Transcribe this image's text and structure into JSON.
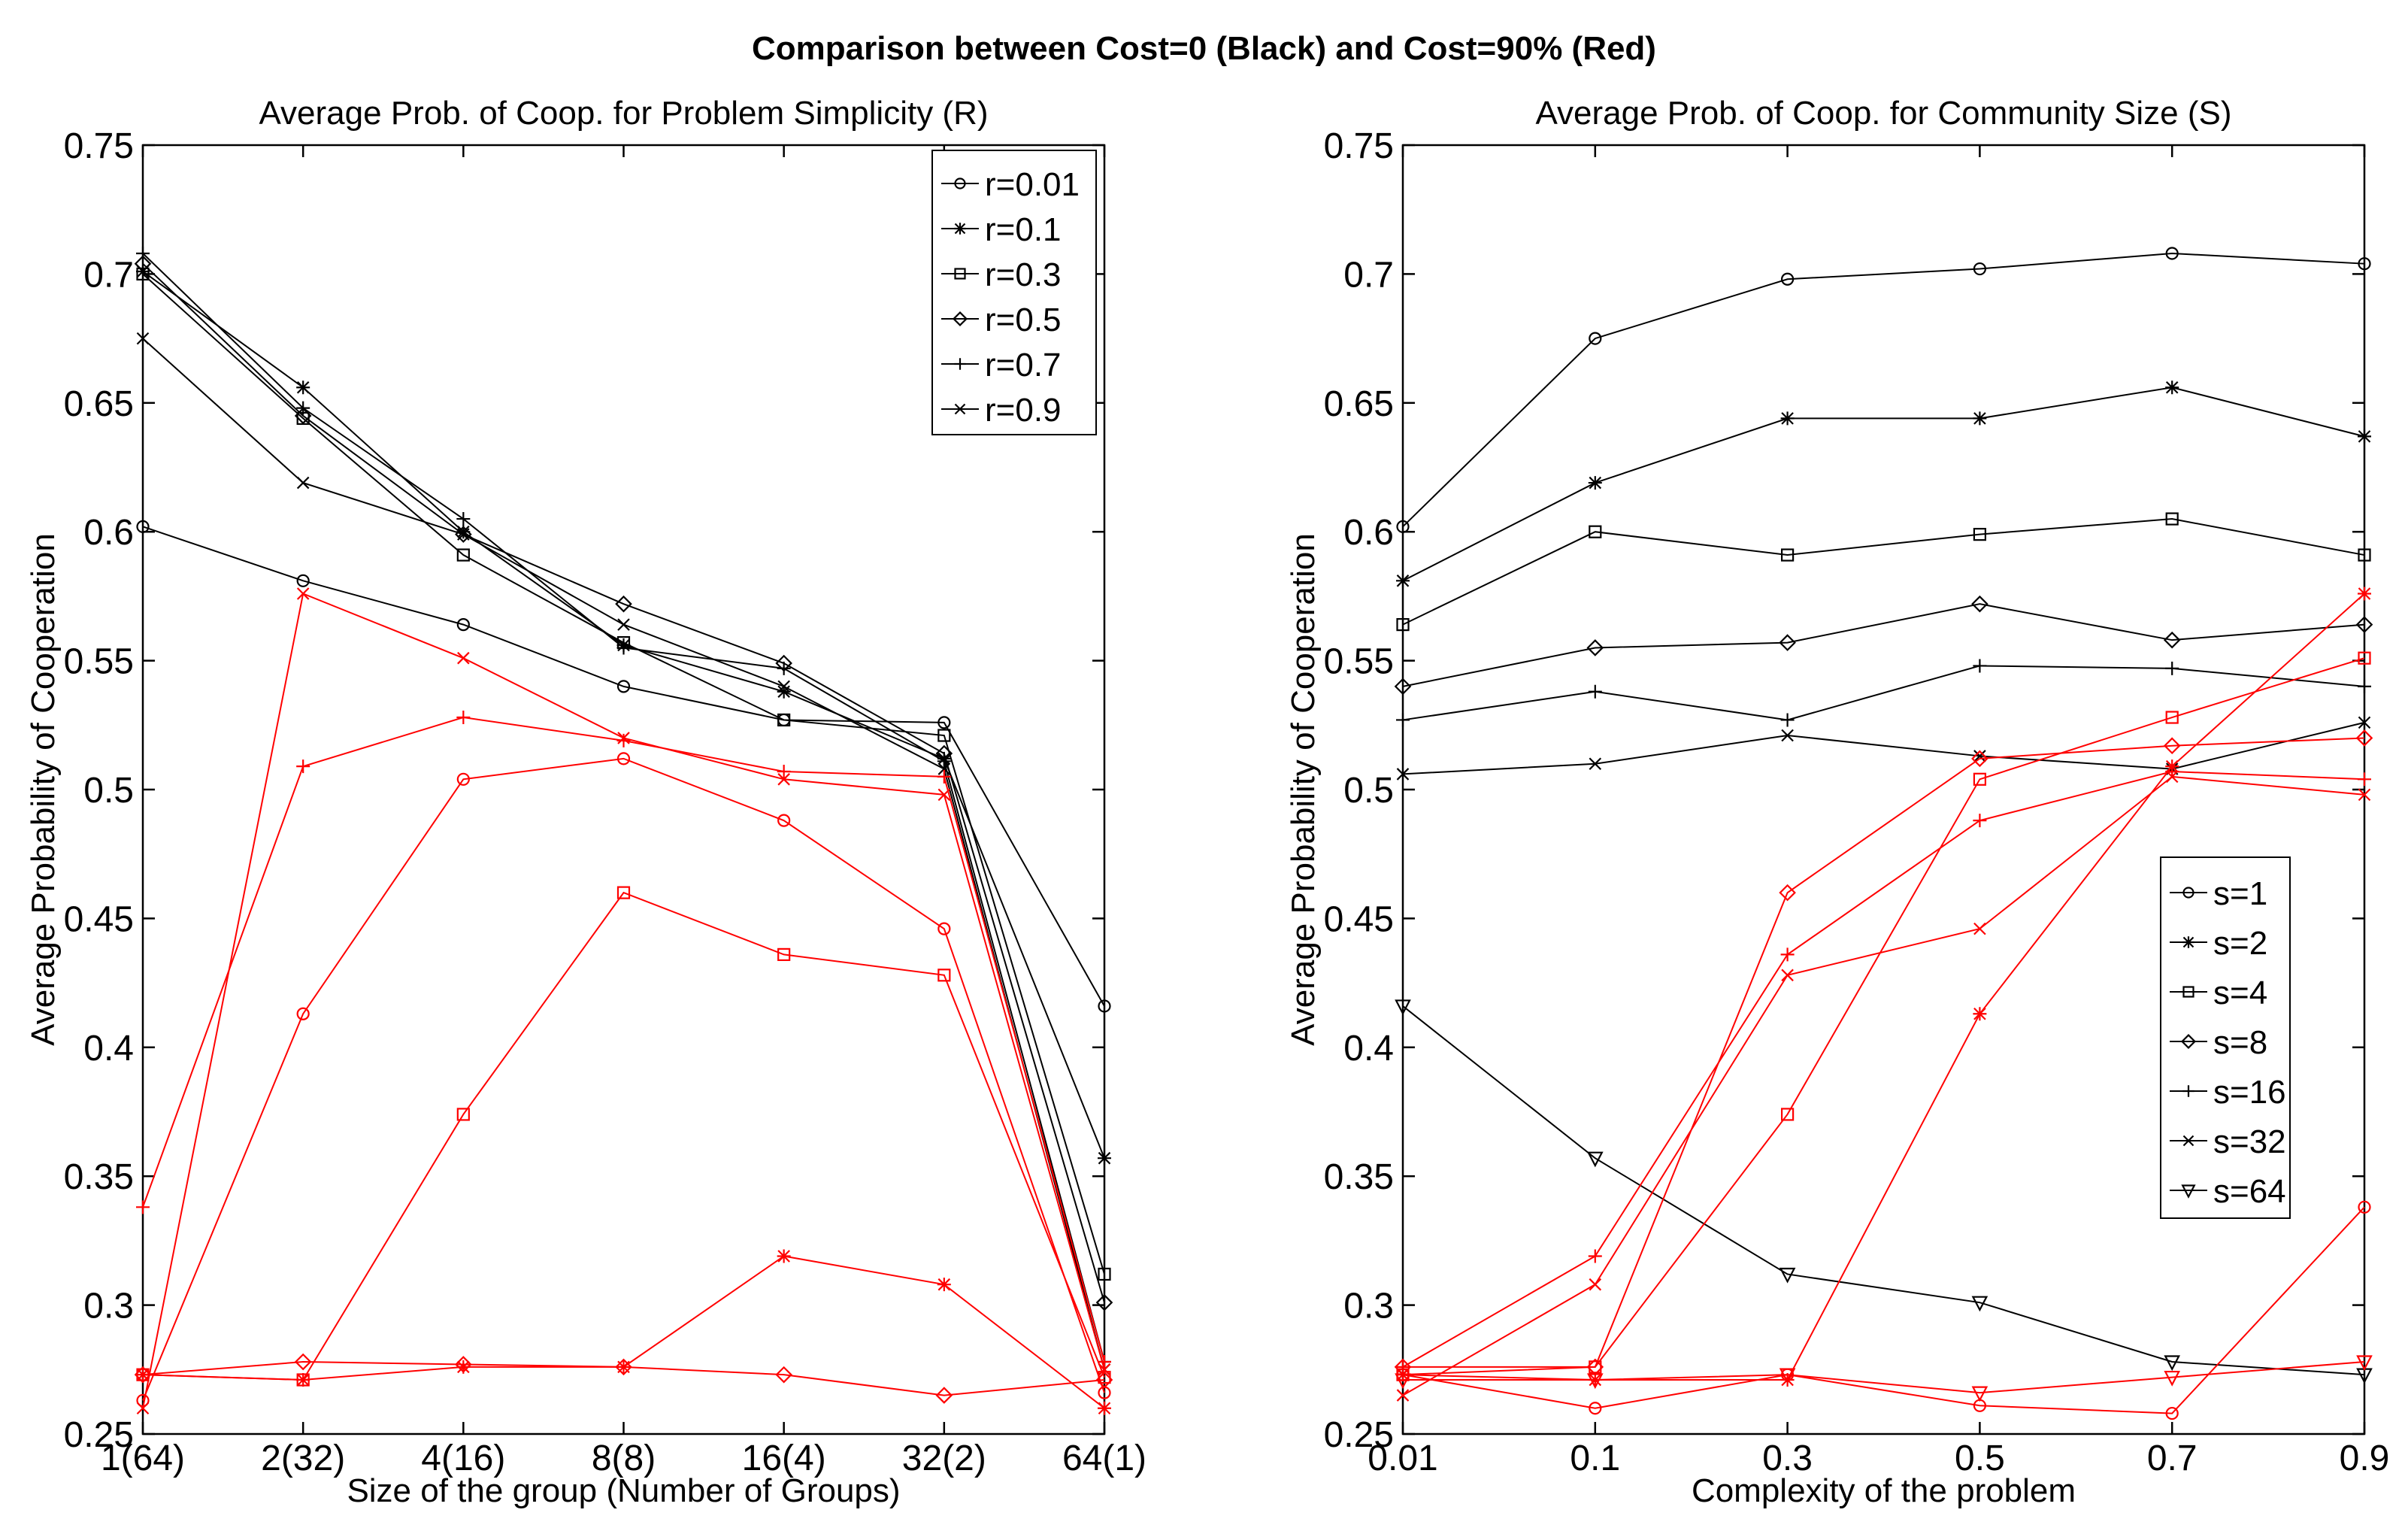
{
  "main_title": "Comparison between Cost=0 (Black) and Cost=90% (Red)",
  "colors": {
    "cost0": "#000000",
    "cost90": "#ff0000",
    "axis": "#000000",
    "background": "#ffffff"
  },
  "chart_data": [
    {
      "type": "line",
      "title": "Average  Prob. of Coop. for Problem Simplicity (R)",
      "xlabel": "Size of the group (Number of Groups)",
      "ylabel": "Average  Probability of Cooperation",
      "categories": [
        "1(64)",
        "2(32)",
        "4(16)",
        "8(8)",
        "16(4)",
        "32(2)",
        "64(1)"
      ],
      "ylim": [
        0.25,
        0.75
      ],
      "yticks": [
        "0.25",
        "0.3",
        "0.35",
        "0.4",
        "0.45",
        "0.5",
        "0.55",
        "0.6",
        "0.65",
        "0.7",
        "0.75"
      ],
      "legend": {
        "position": "top-right",
        "entries": [
          "r=0.01",
          "r=0.1",
          "r=0.3",
          "r=0.5",
          "r=0.7",
          "r=0.9"
        ]
      },
      "series": [
        {
          "name": "r=0.01",
          "marker": "circle",
          "cost": "0",
          "values": [
            0.602,
            0.581,
            0.564,
            0.54,
            0.527,
            0.526,
            0.416
          ]
        },
        {
          "name": "r=0.1",
          "marker": "star",
          "cost": "0",
          "values": [
            0.701,
            0.656,
            0.6,
            0.556,
            0.538,
            0.512,
            0.357
          ]
        },
        {
          "name": "r=0.3",
          "marker": "square",
          "cost": "0",
          "values": [
            0.7,
            0.644,
            0.591,
            0.557,
            0.527,
            0.521,
            0.312
          ]
        },
        {
          "name": "r=0.5",
          "marker": "diamond",
          "cost": "0",
          "values": [
            0.704,
            0.645,
            0.599,
            0.572,
            0.549,
            0.514,
            0.301
          ]
        },
        {
          "name": "r=0.7",
          "marker": "plus",
          "cost": "0",
          "values": [
            0.708,
            0.648,
            0.605,
            0.555,
            0.547,
            0.511,
            0.278
          ]
        },
        {
          "name": "r=0.9",
          "marker": "x",
          "cost": "0",
          "values": [
            0.675,
            0.619,
            0.599,
            0.564,
            0.54,
            0.508,
            0.275
          ]
        },
        {
          "name": "r=0.01",
          "marker": "circle",
          "cost": "90%",
          "values": [
            0.263,
            0.413,
            0.504,
            0.512,
            0.488,
            0.446,
            0.266
          ]
        },
        {
          "name": "r=0.1",
          "marker": "star",
          "cost": "90%",
          "values": [
            0.273,
            0.271,
            0.276,
            0.276,
            0.319,
            0.308,
            0.26
          ]
        },
        {
          "name": "r=0.3",
          "marker": "square",
          "cost": "90%",
          "values": [
            0.273,
            0.271,
            0.374,
            0.46,
            0.436,
            0.428,
            0.272
          ]
        },
        {
          "name": "r=0.5",
          "marker": "diamond",
          "cost": "90%",
          "values": [
            0.273,
            0.278,
            0.277,
            0.276,
            0.273,
            0.265,
            0.271
          ]
        },
        {
          "name": "r=0.7",
          "marker": "plus",
          "cost": "90%",
          "values": [
            0.338,
            0.509,
            0.528,
            0.519,
            0.507,
            0.505,
            0.278
          ]
        },
        {
          "name": "r=0.9",
          "marker": "x",
          "cost": "90%",
          "values": [
            0.26,
            0.576,
            0.551,
            0.52,
            0.504,
            0.498,
            0.275
          ]
        }
      ]
    },
    {
      "type": "line",
      "title": "Average  Prob. of Coop. for Community Size (S)",
      "xlabel": "Complexity of the problem",
      "ylabel": "Average Probability of Cooperation",
      "categories": [
        "0.01",
        "0.1",
        "0.3",
        "0.5",
        "0.7",
        "0.9"
      ],
      "ylim": [
        0.25,
        0.75
      ],
      "yticks": [
        "0.25",
        "0.3",
        "0.35",
        "0.4",
        "0.45",
        "0.5",
        "0.55",
        "0.6",
        "0.65",
        "0.7",
        "0.75"
      ],
      "legend": {
        "position": "right",
        "entries": [
          "s=1",
          "s=2",
          "s=4",
          "s=8",
          "s=16",
          "s=32",
          "s=64"
        ]
      },
      "series": [
        {
          "name": "s=1",
          "marker": "circle",
          "cost": "0",
          "values": [
            0.602,
            0.675,
            0.698,
            0.702,
            0.708,
            0.704
          ]
        },
        {
          "name": "s=2",
          "marker": "star",
          "cost": "0",
          "values": [
            0.581,
            0.619,
            0.644,
            0.644,
            0.656,
            0.637
          ]
        },
        {
          "name": "s=4",
          "marker": "square",
          "cost": "0",
          "values": [
            0.564,
            0.6,
            0.591,
            0.599,
            0.605,
            0.591
          ]
        },
        {
          "name": "s=8",
          "marker": "diamond",
          "cost": "0",
          "values": [
            0.54,
            0.555,
            0.557,
            0.572,
            0.558,
            0.564
          ]
        },
        {
          "name": "s=16",
          "marker": "plus",
          "cost": "0",
          "values": [
            0.527,
            0.538,
            0.527,
            0.548,
            0.547,
            0.54
          ]
        },
        {
          "name": "s=32",
          "marker": "x",
          "cost": "0",
          "values": [
            0.506,
            0.51,
            0.521,
            0.513,
            0.508,
            0.526
          ]
        },
        {
          "name": "s=64",
          "marker": "triangle-down",
          "cost": "0",
          "values": [
            0.416,
            0.357,
            0.312,
            0.301,
            0.278,
            0.273
          ]
        },
        {
          "name": "s=1",
          "marker": "circle",
          "cost": "90%",
          "values": [
            0.273,
            0.26,
            0.273,
            0.261,
            0.258,
            0.338
          ]
        },
        {
          "name": "s=2",
          "marker": "star",
          "cost": "90%",
          "values": [
            0.273,
            0.271,
            0.271,
            0.413,
            0.509,
            0.576
          ]
        },
        {
          "name": "s=4",
          "marker": "square",
          "cost": "90%",
          "values": [
            0.273,
            0.276,
            0.374,
            0.504,
            0.528,
            0.551
          ]
        },
        {
          "name": "s=8",
          "marker": "diamond",
          "cost": "90%",
          "values": [
            0.276,
            0.276,
            0.46,
            0.512,
            0.517,
            0.52
          ]
        },
        {
          "name": "s=16",
          "marker": "plus",
          "cost": "90%",
          "values": [
            0.276,
            0.319,
            0.436,
            0.488,
            0.507,
            0.504
          ]
        },
        {
          "name": "s=32",
          "marker": "x",
          "cost": "90%",
          "values": [
            0.265,
            0.308,
            0.428,
            0.446,
            0.505,
            0.498
          ]
        },
        {
          "name": "s=64",
          "marker": "triangle-down",
          "cost": "90%",
          "values": [
            0.271,
            0.271,
            0.273,
            0.266,
            0.272,
            0.278
          ]
        }
      ]
    }
  ]
}
